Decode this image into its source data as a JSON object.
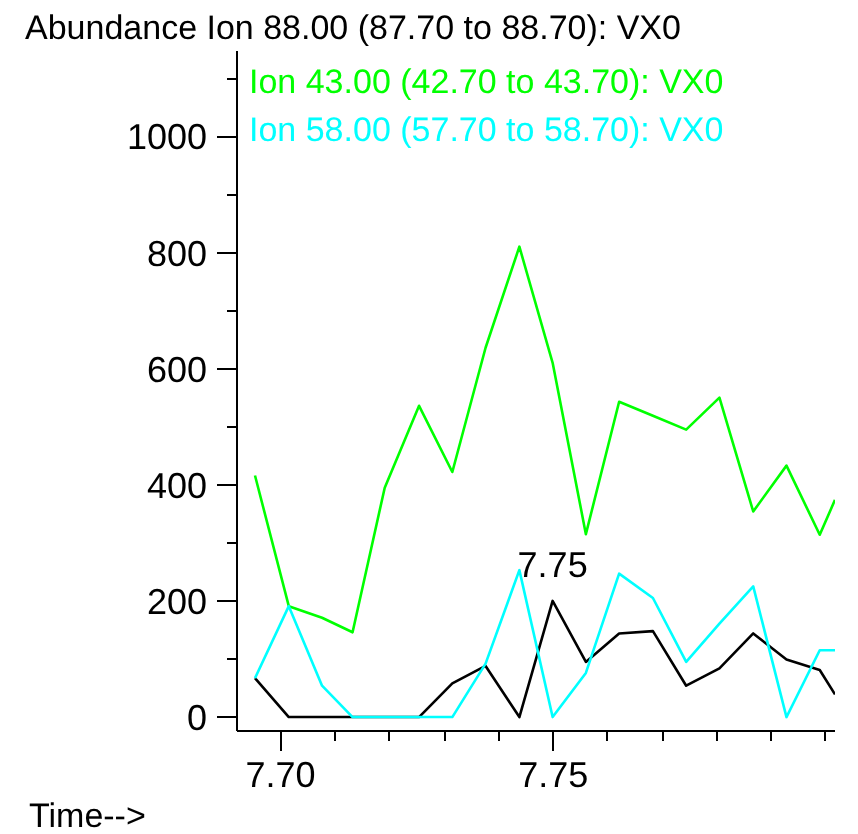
{
  "chart_data": {
    "type": "line",
    "xlabel": "Time-->",
    "ylabel": "Abundance",
    "x": [
      7.6953,
      7.7015,
      7.7076,
      7.7132,
      7.7191,
      7.7254,
      7.7315,
      7.7376,
      7.7438,
      7.7499,
      7.756,
      7.7621,
      7.7683,
      7.7744,
      7.7805,
      7.7867,
      7.7928,
      7.7989,
      7.8017
    ],
    "series": [
      {
        "name": "Ion  88.00 (87.70 to 88.70): VX0",
        "color": "#000000",
        "values": [
          67,
          0,
          0,
          0,
          0,
          0,
          58,
          88,
          0,
          200,
          95,
          144,
          148,
          54,
          84,
          144,
          99,
          81,
          39
        ]
      },
      {
        "name": "Ion  43.00 (42.70 to 43.70): VX0",
        "color": "#00ff00",
        "values": [
          416,
          191,
          171,
          146,
          395,
          536,
          422,
          636,
          810,
          610,
          315,
          543,
          519,
          495,
          550,
          354,
          433,
          314,
          374
        ]
      },
      {
        "name": "Ion  58.00 (57.70 to 58.70): VX0",
        "color": "#00ffff",
        "values": [
          67,
          191,
          54,
          0,
          0,
          0,
          0,
          92,
          253,
          0,
          76,
          247,
          205,
          95,
          161,
          225,
          0,
          115,
          115
        ]
      }
    ],
    "annotations": [
      {
        "text": "7.75",
        "x": 7.7499,
        "y": 200
      }
    ],
    "xlim": [
      7.692,
      7.8017
    ],
    "ylim": [
      -24,
      1147
    ],
    "xticks": [
      {
        "value": 7.7,
        "label": "7.70"
      },
      {
        "value": 7.75,
        "label": "7.75"
      },
      {
        "value": 7.71,
        "label": null
      },
      {
        "value": 7.72,
        "label": null
      },
      {
        "value": 7.73,
        "label": null
      },
      {
        "value": 7.74,
        "label": null
      },
      {
        "value": 7.76,
        "label": null
      },
      {
        "value": 7.77,
        "label": null
      },
      {
        "value": 7.78,
        "label": null
      },
      {
        "value": 7.79,
        "label": null
      },
      {
        "value": 7.8,
        "label": null
      }
    ],
    "yticks": [
      0,
      200,
      400,
      600,
      800,
      1000,
      {
        "value": 100,
        "label": null
      },
      {
        "value": 300,
        "label": null
      },
      {
        "value": 500,
        "label": null
      },
      {
        "value": 700,
        "label": null
      },
      {
        "value": 900,
        "label": null
      },
      {
        "value": 1100,
        "label": null
      }
    ],
    "legend": "top",
    "grid": false,
    "marker": "none",
    "line_style": "solid"
  }
}
